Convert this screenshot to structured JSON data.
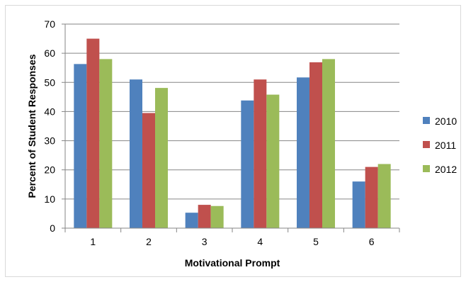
{
  "chart_data": {
    "type": "bar",
    "title": "",
    "xlabel": "Motivational Prompt",
    "ylabel": "Percent of Student Responses",
    "categories": [
      "1",
      "2",
      "3",
      "4",
      "5",
      "6"
    ],
    "series": [
      {
        "name": "2010",
        "color": "#4F81BD",
        "values": [
          56.3,
          51,
          5.3,
          43.8,
          51.7,
          16
        ]
      },
      {
        "name": "2011",
        "color": "#C0504D",
        "values": [
          65,
          39.5,
          8,
          51,
          56.9,
          21
        ]
      },
      {
        "name": "2012",
        "color": "#9BBB59",
        "values": [
          58,
          48.1,
          7.6,
          45.8,
          58,
          22
        ]
      }
    ],
    "ylim": [
      0,
      70
    ],
    "yticks": [
      "0",
      "10",
      "20",
      "30",
      "40",
      "50",
      "60",
      "70"
    ],
    "grid": true,
    "legend_position": "right"
  }
}
